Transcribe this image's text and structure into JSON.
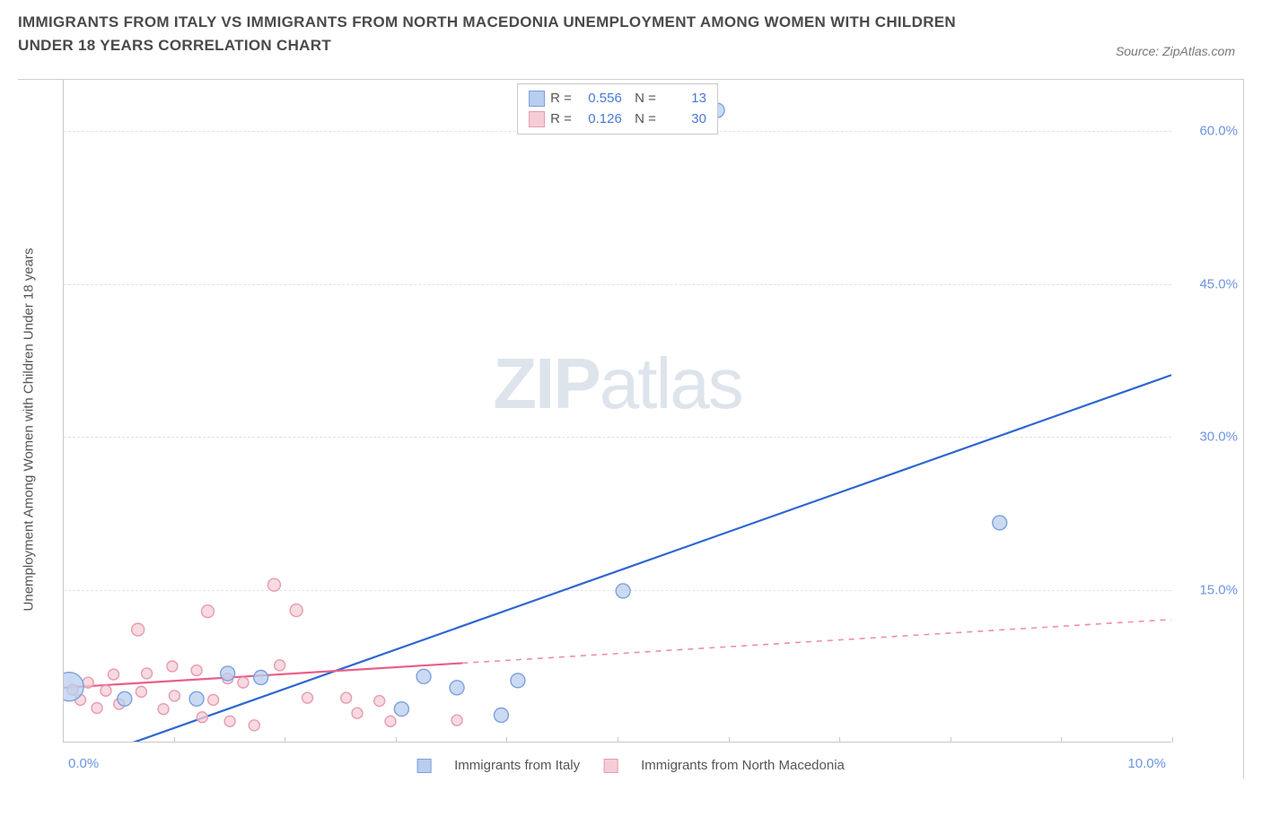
{
  "header": {
    "title": "IMMIGRANTS FROM ITALY VS IMMIGRANTS FROM NORTH MACEDONIA UNEMPLOYMENT AMONG WOMEN WITH CHILDREN UNDER 18 YEARS CORRELATION CHART",
    "source": "Source: ZipAtlas.com"
  },
  "watermark": {
    "zip": "ZIP",
    "atlas": "atlas"
  },
  "chart": {
    "type": "scatter",
    "xlim": [
      0,
      10
    ],
    "ylim": [
      0,
      65
    ],
    "yticks": [
      {
        "v": 15,
        "label": "15.0%"
      },
      {
        "v": 30,
        "label": "30.0%"
      },
      {
        "v": 45,
        "label": "45.0%"
      },
      {
        "v": 60,
        "label": "60.0%"
      }
    ],
    "xtick_min_label": "0.0%",
    "xtick_max_label": "10.0%",
    "xtick_count": 11,
    "ylabel": "Unemployment Among Women with Children Under 18 years",
    "background_color": "#ffffff",
    "grid_color": "#e2e2e2",
    "axis_color": "#c8c8c8",
    "tick_label_color": "#6b95e0",
    "series": [
      {
        "name": "Immigrants from Italy",
        "color_fill": "#b8cdef",
        "color_stroke": "#7ca0dd",
        "line_color": "#2e66d0",
        "line_solid_end": 10.0,
        "line_dash_start": 10.0,
        "line_y_at_0": -2.5,
        "line_y_at_10": 36.0,
        "R": "0.556",
        "N": "13",
        "points": [
          {
            "x": 0.05,
            "y": 5.4,
            "r": 16
          },
          {
            "x": 0.55,
            "y": 4.2,
            "r": 8
          },
          {
            "x": 1.2,
            "y": 4.2,
            "r": 8
          },
          {
            "x": 1.48,
            "y": 6.7,
            "r": 8
          },
          {
            "x": 1.78,
            "y": 6.3,
            "r": 8
          },
          {
            "x": 3.05,
            "y": 3.2,
            "r": 8
          },
          {
            "x": 3.25,
            "y": 6.4,
            "r": 8
          },
          {
            "x": 3.55,
            "y": 5.3,
            "r": 8
          },
          {
            "x": 3.95,
            "y": 2.6,
            "r": 8
          },
          {
            "x": 4.1,
            "y": 6.0,
            "r": 8
          },
          {
            "x": 5.05,
            "y": 14.8,
            "r": 8
          },
          {
            "x": 5.9,
            "y": 62.0,
            "r": 8
          },
          {
            "x": 8.45,
            "y": 21.5,
            "r": 8
          }
        ]
      },
      {
        "name": "Immigrants from North Macedonia",
        "color_fill": "#f6cdd7",
        "color_stroke": "#e79bb0",
        "line_color": "#e85f88",
        "line_solid_end": 3.6,
        "line_dash_start": 3.6,
        "line_y_at_0": 5.3,
        "line_y_at_10": 12.0,
        "R": "0.126",
        "N": "30",
        "points": [
          {
            "x": 0.08,
            "y": 5.1,
            "r": 6
          },
          {
            "x": 0.15,
            "y": 4.1,
            "r": 6
          },
          {
            "x": 0.22,
            "y": 5.8,
            "r": 6
          },
          {
            "x": 0.3,
            "y": 3.3,
            "r": 6
          },
          {
            "x": 0.38,
            "y": 5.0,
            "r": 6
          },
          {
            "x": 0.45,
            "y": 6.6,
            "r": 6
          },
          {
            "x": 0.5,
            "y": 3.7,
            "r": 6
          },
          {
            "x": 0.67,
            "y": 11.0,
            "r": 7
          },
          {
            "x": 0.7,
            "y": 4.9,
            "r": 6
          },
          {
            "x": 0.75,
            "y": 6.7,
            "r": 6
          },
          {
            "x": 0.9,
            "y": 3.2,
            "r": 6
          },
          {
            "x": 0.98,
            "y": 7.4,
            "r": 6
          },
          {
            "x": 1.0,
            "y": 4.5,
            "r": 6
          },
          {
            "x": 1.2,
            "y": 7.0,
            "r": 6
          },
          {
            "x": 1.25,
            "y": 2.4,
            "r": 6
          },
          {
            "x": 1.3,
            "y": 12.8,
            "r": 7
          },
          {
            "x": 1.35,
            "y": 4.1,
            "r": 6
          },
          {
            "x": 1.48,
            "y": 6.2,
            "r": 6
          },
          {
            "x": 1.5,
            "y": 2.0,
            "r": 6
          },
          {
            "x": 1.62,
            "y": 5.8,
            "r": 6
          },
          {
            "x": 1.72,
            "y": 1.6,
            "r": 6
          },
          {
            "x": 1.9,
            "y": 15.4,
            "r": 7
          },
          {
            "x": 1.95,
            "y": 7.5,
            "r": 6
          },
          {
            "x": 2.1,
            "y": 12.9,
            "r": 7
          },
          {
            "x": 2.2,
            "y": 4.3,
            "r": 6
          },
          {
            "x": 2.55,
            "y": 4.3,
            "r": 6
          },
          {
            "x": 2.65,
            "y": 2.8,
            "r": 6
          },
          {
            "x": 2.85,
            "y": 4.0,
            "r": 6
          },
          {
            "x": 2.95,
            "y": 2.0,
            "r": 6
          },
          {
            "x": 3.55,
            "y": 2.1,
            "r": 6
          }
        ]
      }
    ]
  },
  "legend_bottom": {
    "items": [
      {
        "label": "Immigrants from Italy",
        "fill": "#b8cdef",
        "stroke": "#7ca0dd"
      },
      {
        "label": "Immigrants from North Macedonia",
        "fill": "#f6cdd7",
        "stroke": "#e79bb0"
      }
    ]
  }
}
